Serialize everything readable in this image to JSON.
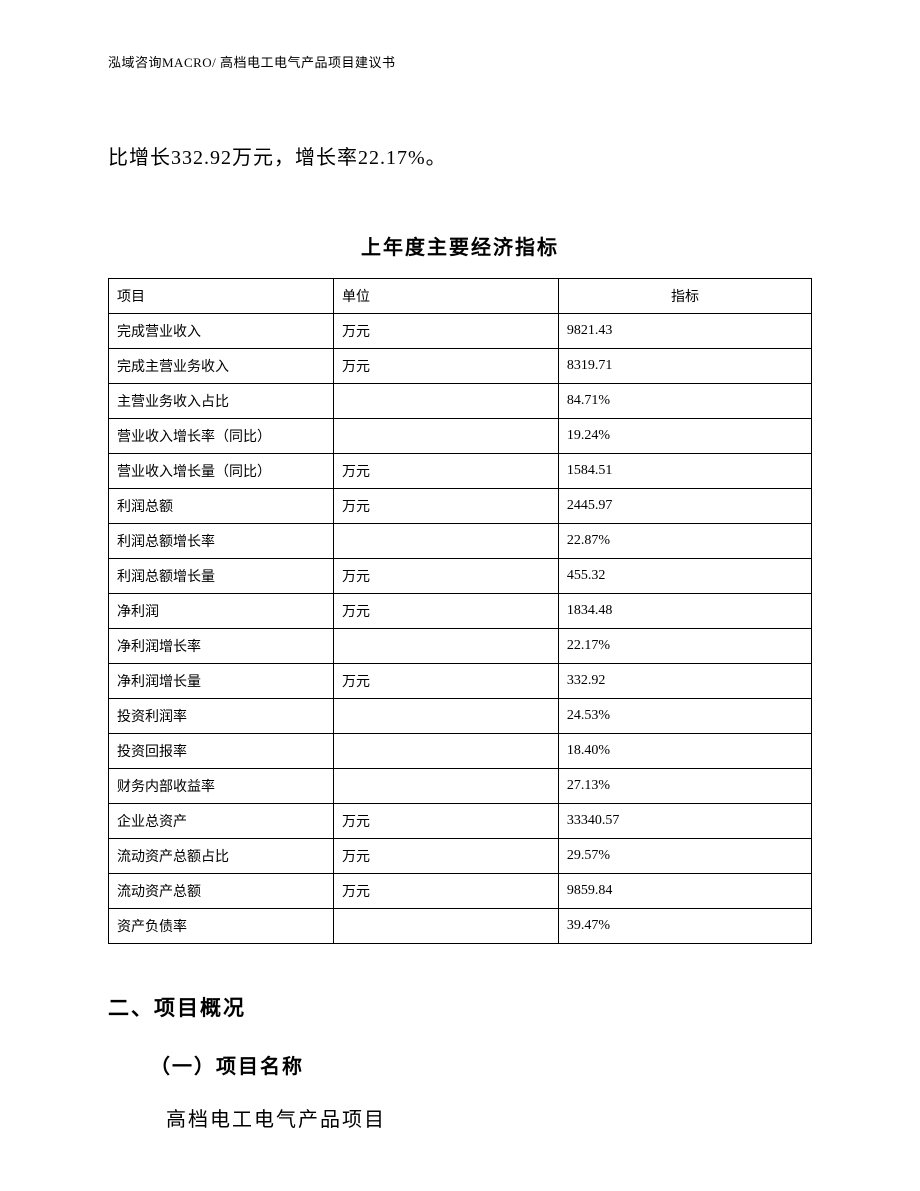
{
  "header": {
    "text": "泓域咨询MACRO/ 高档电工电气产品项目建议书"
  },
  "intro": {
    "text": "比增长332.92万元，增长率22.17%。"
  },
  "table": {
    "title": "上年度主要经济指标",
    "columns": [
      "项目",
      "单位",
      "指标"
    ],
    "rows": [
      [
        "完成营业收入",
        "万元",
        "9821.43"
      ],
      [
        "完成主营业务收入",
        "万元",
        "8319.71"
      ],
      [
        "主营业务收入占比",
        "",
        "84.71%"
      ],
      [
        "营业收入增长率（同比）",
        "",
        "19.24%"
      ],
      [
        "营业收入增长量（同比）",
        "万元",
        "1584.51"
      ],
      [
        "利润总额",
        "万元",
        "2445.97"
      ],
      [
        "利润总额增长率",
        "",
        "22.87%"
      ],
      [
        "利润总额增长量",
        "万元",
        "455.32"
      ],
      [
        "净利润",
        "万元",
        "1834.48"
      ],
      [
        "净利润增长率",
        "",
        "22.17%"
      ],
      [
        "净利润增长量",
        "万元",
        "332.92"
      ],
      [
        "投资利润率",
        "",
        "24.53%"
      ],
      [
        "投资回报率",
        "",
        "18.40%"
      ],
      [
        "财务内部收益率",
        "",
        "27.13%"
      ],
      [
        "企业总资产",
        "万元",
        "33340.57"
      ],
      [
        "流动资产总额占比",
        "万元",
        "29.57%"
      ],
      [
        "流动资产总额",
        "万元",
        "9859.84"
      ],
      [
        "资产负债率",
        "",
        "39.47%"
      ]
    ]
  },
  "sections": {
    "heading": "二、项目概况",
    "subheading": "（一）项目名称",
    "subcontent": "高档电工电气产品项目"
  }
}
